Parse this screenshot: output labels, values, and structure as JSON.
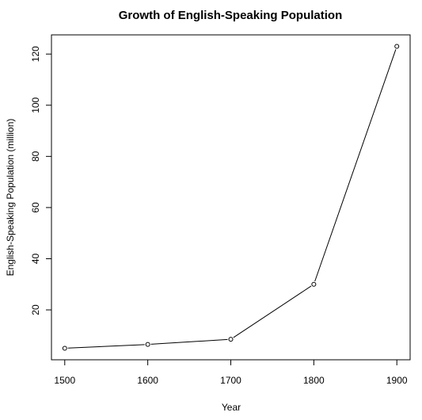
{
  "chart_data": {
    "type": "line",
    "title": "Growth of English-Speaking Population",
    "xlabel": "Year",
    "ylabel": "English-Speaking Population (million)",
    "x": [
      1500,
      1600,
      1700,
      1800,
      1900
    ],
    "series": [
      {
        "values": [
          5,
          6.5,
          8.5,
          30,
          123
        ]
      }
    ],
    "xticks": [
      1500,
      1600,
      1700,
      1800,
      1900
    ],
    "yticks": [
      20,
      40,
      60,
      80,
      100,
      120
    ],
    "xlim": [
      1484,
      1916
    ],
    "ylim": [
      0.5,
      127.5
    ],
    "marker": "open-circle",
    "line_color": "#000000",
    "grid": false,
    "legend": "none"
  }
}
